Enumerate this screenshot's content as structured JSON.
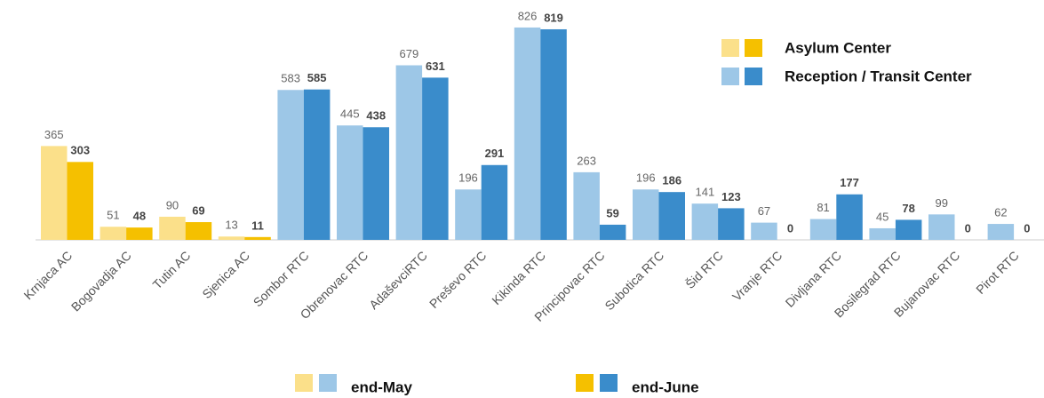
{
  "chart_data": {
    "type": "bar",
    "categories": [
      "Krnjaca AC",
      "Bogovadja AC",
      "Tutin AC",
      "Sjenica AC",
      "Sombor RTC",
      "Obrenovac RTC",
      "AdaševciRTC",
      "Preševo RTC",
      "Kikinda RTC",
      "Principovac RTC",
      "Subotica RTC",
      "Šid RTC",
      "Vranje RTC",
      "Divljana RTC",
      "Bosilegrad RTC",
      "Bujanovac RTC",
      "Pirot RTC"
    ],
    "series": [
      {
        "name": "end-May",
        "colors": [
          "#fbe08a",
          "#fbe08a",
          "#fbe08a",
          "#fbe08a",
          "#9dc7e7",
          "#9dc7e7",
          "#9dc7e7",
          "#9dc7e7",
          "#9dc7e7",
          "#9dc7e7",
          "#9dc7e7",
          "#9dc7e7",
          "#9dc7e7",
          "#9dc7e7",
          "#9dc7e7",
          "#9dc7e7",
          "#9dc7e7"
        ],
        "values": [
          365,
          51,
          90,
          13,
          583,
          445,
          679,
          196,
          826,
          263,
          196,
          141,
          67,
          81,
          45,
          99,
          62
        ]
      },
      {
        "name": "end-June",
        "colors": [
          "#f5c000",
          "#f5c000",
          "#f5c000",
          "#f5c000",
          "#3a8ccb",
          "#3a8ccb",
          "#3a8ccb",
          "#3a8ccb",
          "#3a8ccb",
          "#3a8ccb",
          "#3a8ccb",
          "#3a8ccb",
          "#3a8ccb",
          "#3a8ccb",
          "#3a8ccb",
          "#3a8ccb",
          "#3a8ccb"
        ],
        "values": [
          303,
          48,
          69,
          11,
          585,
          438,
          631,
          291,
          819,
          59,
          186,
          123,
          0,
          177,
          78,
          0,
          0
        ]
      }
    ],
    "legend_groups": [
      {
        "name": "Asylum Center",
        "colors": [
          "#fbe08a",
          "#f5c000"
        ]
      },
      {
        "name": "Reception / Transit Center",
        "colors": [
          "#9dc7e7",
          "#3a8ccb"
        ]
      }
    ]
  }
}
